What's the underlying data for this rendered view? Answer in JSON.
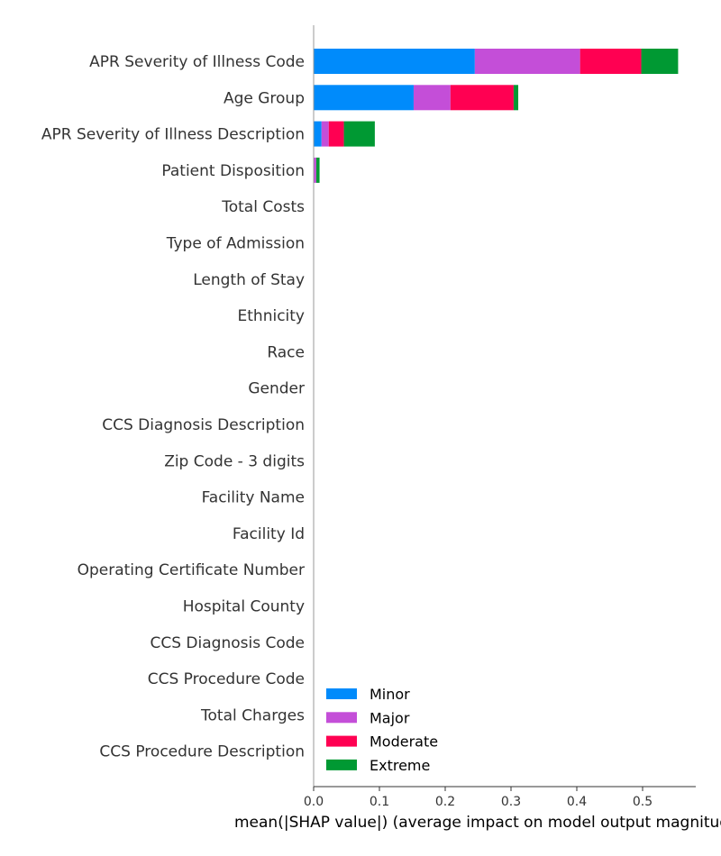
{
  "chart_data": {
    "type": "bar",
    "orientation": "horizontal",
    "stacked": true,
    "title": "",
    "xlabel": "mean(|SHAP value|) (average impact on model output magnitude)",
    "ylabel": "",
    "xlim": [
      0,
      0.58
    ],
    "xticks": [
      0.0,
      0.1,
      0.2,
      0.3,
      0.4,
      0.5
    ],
    "xtick_labels": [
      "0.0",
      "0.1",
      "0.2",
      "0.3",
      "0.4",
      "0.5"
    ],
    "grid": false,
    "legend_position": "bottom-right",
    "categories": [
      "APR Severity of Illness Code",
      "Age Group",
      "APR Severity of Illness Description",
      "Patient Disposition",
      "Total Costs",
      "Type of Admission",
      "Length of Stay",
      "Ethnicity",
      "Race",
      "Gender",
      "CCS Diagnosis Description",
      "Zip Code - 3 digits",
      "Facility Name",
      "Facility Id",
      "Operating Certificate Number",
      "Hospital County",
      "CCS Diagnosis Code",
      "CCS Procedure Code",
      "Total Charges",
      "CCS Procedure Description"
    ],
    "series": [
      {
        "name": "Minor",
        "color": "#008bfb",
        "values": [
          0.245,
          0.152,
          0.012,
          0.0,
          0,
          0,
          0,
          0,
          0,
          0,
          0,
          0,
          0,
          0,
          0,
          0,
          0,
          0,
          0,
          0
        ]
      },
      {
        "name": "Major",
        "color": "#c44ed8",
        "values": [
          0.16,
          0.056,
          0.011,
          0.004,
          0,
          0,
          0,
          0,
          0,
          0,
          0,
          0,
          0,
          0,
          0,
          0,
          0,
          0,
          0,
          0
        ]
      },
      {
        "name": "Moderate",
        "color": "#ff0052",
        "values": [
          0.093,
          0.096,
          0.023,
          0.0,
          0,
          0,
          0,
          0,
          0,
          0,
          0,
          0,
          0,
          0,
          0,
          0,
          0,
          0,
          0,
          0
        ]
      },
      {
        "name": "Extreme",
        "color": "#009933",
        "values": [
          0.056,
          0.007,
          0.047,
          0.005,
          0,
          0,
          0,
          0,
          0,
          0,
          0,
          0,
          0,
          0,
          0,
          0,
          0,
          0,
          0,
          0
        ]
      }
    ]
  }
}
